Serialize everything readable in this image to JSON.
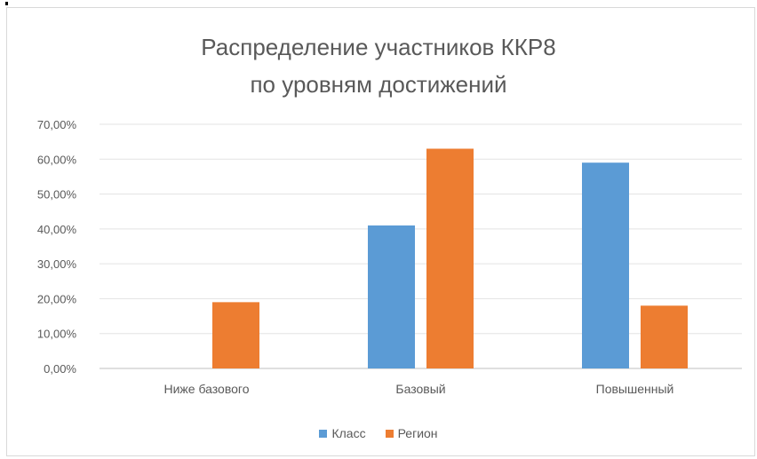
{
  "chart_data": {
    "type": "bar",
    "title_line1": "Распределение участников ККР8",
    "title_line2": "по уровням достижений",
    "categories": [
      "Ниже базового",
      "Базовый",
      "Повышенный"
    ],
    "series": [
      {
        "name": "Класс",
        "color": "#5b9bd5",
        "values": [
          0,
          41.0,
          59.0
        ]
      },
      {
        "name": "Регион",
        "color": "#ed7d31",
        "values": [
          19.0,
          63.0,
          18.0
        ]
      }
    ],
    "ylim": [
      0,
      70
    ],
    "yticks": [
      0,
      10,
      20,
      30,
      40,
      50,
      60,
      70
    ],
    "ytick_labels": [
      "0,00%",
      "10,00%",
      "20,00%",
      "30,00%",
      "40,00%",
      "50,00%",
      "60,00%",
      "70,00%"
    ],
    "grid": true,
    "legend_position": "bottom"
  }
}
